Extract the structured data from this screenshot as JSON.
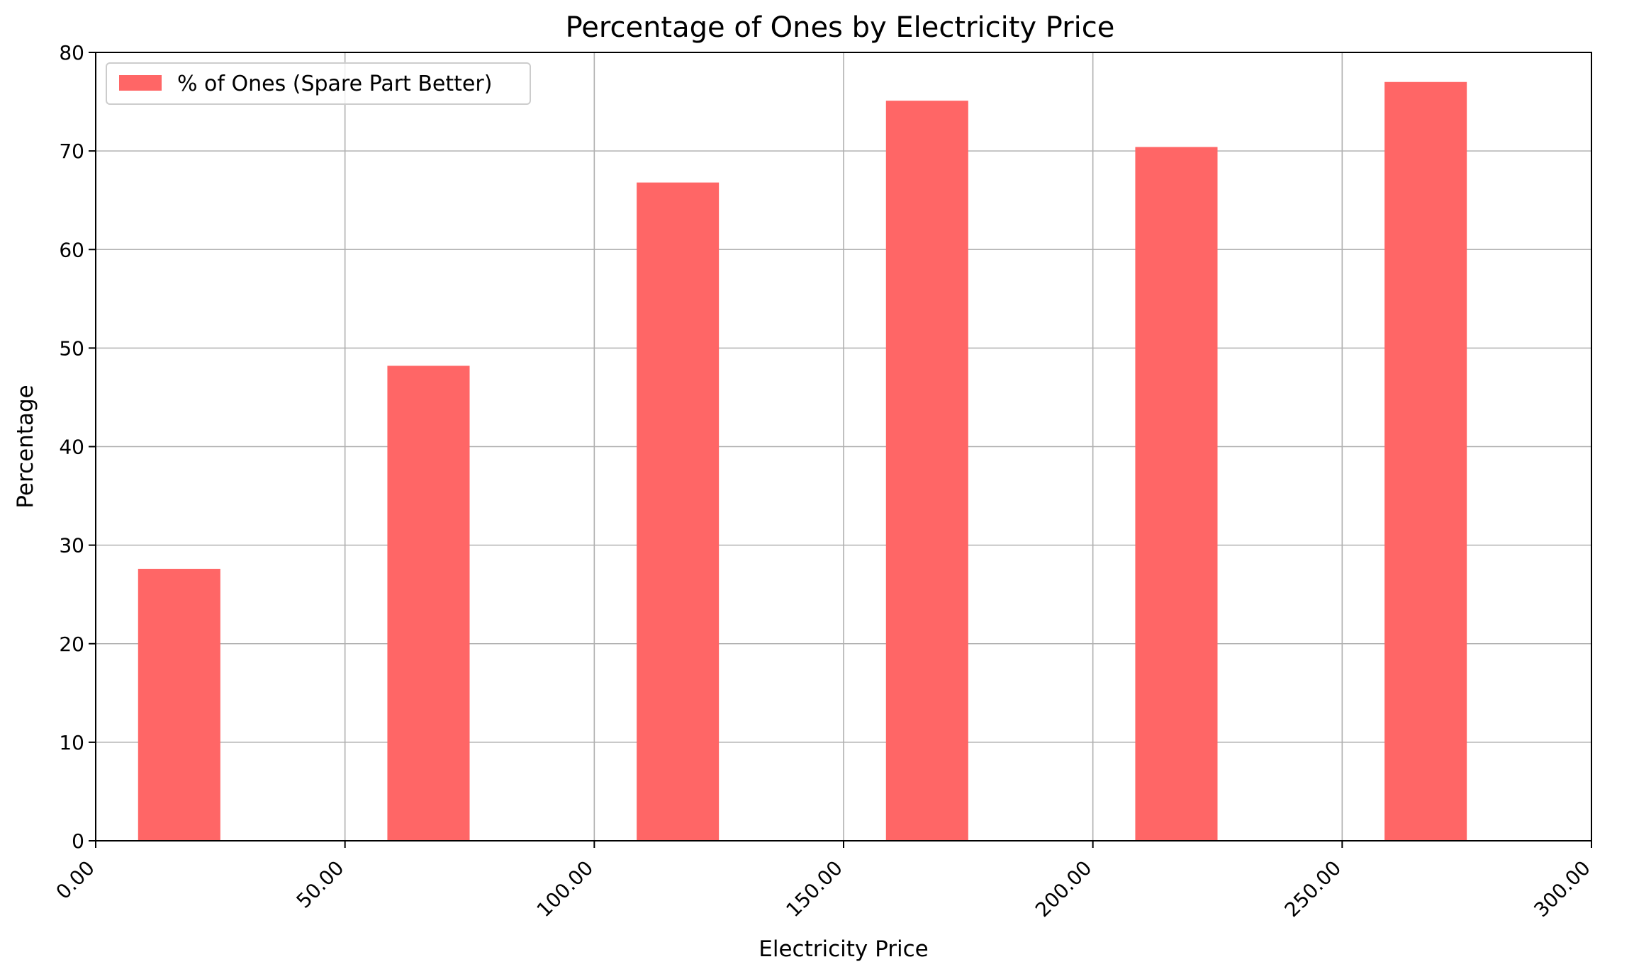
{
  "chart_data": {
    "type": "bar",
    "title": "Percentage of Ones by Electricity Price",
    "xlabel": "Electricity Price",
    "ylabel": "Percentage",
    "xlim": [
      0,
      300
    ],
    "ylim": [
      0,
      80
    ],
    "x_ticks": [
      "0.00",
      "50.00",
      "100.00",
      "150.00",
      "200.00",
      "250.00",
      "300.00"
    ],
    "y_ticks": [
      "0",
      "10",
      "20",
      "30",
      "40",
      "50",
      "60",
      "70",
      "80"
    ],
    "grid": true,
    "legend_position": "top-left",
    "series": [
      {
        "name": "% of Ones (Spare Part Better)",
        "color": "#ff6666",
        "bars": [
          {
            "x_start": 8.5,
            "x_end": 25.0,
            "value": 27.6
          },
          {
            "x_start": 58.5,
            "x_end": 75.0,
            "value": 48.2
          },
          {
            "x_start": 108.5,
            "x_end": 125.0,
            "value": 66.8
          },
          {
            "x_start": 158.5,
            "x_end": 175.0,
            "value": 75.1
          },
          {
            "x_start": 208.5,
            "x_end": 225.0,
            "value": 70.4
          },
          {
            "x_start": 258.5,
            "x_end": 275.0,
            "value": 77.0
          }
        ]
      }
    ]
  }
}
